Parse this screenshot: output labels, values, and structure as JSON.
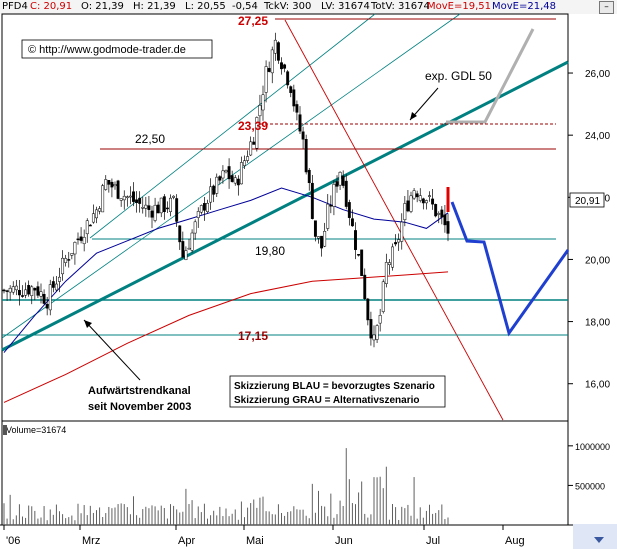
{
  "header": {
    "symbol": "PFD4",
    "close": "C: 20,91",
    "open": "O: 21,39",
    "high": "H: 21,39",
    "low": "L: 20,55",
    "change": "-0,54",
    "tick_vol": "TckV: 300",
    "last_vol": "LV: 31674",
    "total_vol": "TotV: 31674",
    "move_red": "MovE=19,51",
    "move_blue": "MovE=21,48",
    "button": "–"
  },
  "colors": {
    "up": "#3a3a3a",
    "down": "#000000",
    "ema_red": "#cc0000",
    "ema_blue": "#000099",
    "trend": "#008080",
    "scenario_blue": "#1f3fd0",
    "scenario_grey": "#b0b0b0",
    "annot_red": "#cc0000"
  },
  "chart_data": {
    "type": "candlestick",
    "x_axis": {
      "ticks": [
        "'06",
        "Mrz",
        "Apr",
        "Mai",
        "Jun",
        "Jul",
        "Aug"
      ]
    },
    "y_axis": {
      "ylim": [
        14.8,
        27.9
      ],
      "ticks": [
        "16,00",
        "18,00",
        "20,00",
        "22,00",
        "24,00",
        "26,00"
      ],
      "current_value_label": "20,91"
    },
    "series_seed": {
      "comment": "",
      "path": [
        [
          0,
          19.0
        ],
        [
          10,
          19.1
        ],
        [
          14,
          18.7
        ],
        [
          20,
          20.0
        ],
        [
          26,
          21.0
        ],
        [
          30,
          21.6
        ],
        [
          33,
          22.5
        ],
        [
          40,
          22.0
        ],
        [
          47,
          21.6
        ],
        [
          55,
          21.8
        ],
        [
          58,
          20.1
        ],
        [
          65,
          21.8
        ],
        [
          72,
          22.8
        ],
        [
          75,
          22.4
        ],
        [
          81,
          24.0
        ],
        [
          85,
          26.0
        ],
        [
          88,
          27.0
        ],
        [
          90,
          26.4
        ],
        [
          93,
          25.6
        ],
        [
          95,
          24.5
        ],
        [
          97,
          23.8
        ],
        [
          99,
          22.3
        ],
        [
          101,
          20.8
        ],
        [
          103,
          20.4
        ],
        [
          105,
          21.5
        ],
        [
          107,
          22.2
        ],
        [
          109,
          22.9
        ],
        [
          111,
          22.0
        ],
        [
          113,
          21.0
        ],
        [
          116,
          19.6
        ],
        [
          118,
          18.2
        ],
        [
          120,
          17.3
        ],
        [
          122,
          18.2
        ],
        [
          124,
          19.8
        ],
        [
          127,
          20.3
        ],
        [
          130,
          21.6
        ],
        [
          133,
          22.3
        ],
        [
          137,
          22.0
        ],
        [
          141,
          21.4
        ],
        [
          144,
          20.9
        ]
      ]
    },
    "ema_red": {
      "name": "MovE=19,51",
      "points": [
        [
          0,
          15.4
        ],
        [
          20,
          16.3
        ],
        [
          40,
          17.3
        ],
        [
          60,
          18.2
        ],
        [
          80,
          18.9
        ],
        [
          100,
          19.3
        ],
        [
          115,
          19.4
        ],
        [
          130,
          19.5
        ],
        [
          144,
          19.6
        ]
      ]
    },
    "ema_blue": {
      "name": "MovE=21,48",
      "points": [
        [
          0,
          17.0
        ],
        [
          10,
          18.2
        ],
        [
          20,
          19.3
        ],
        [
          30,
          20.2
        ],
        [
          40,
          20.6
        ],
        [
          50,
          21.0
        ],
        [
          60,
          21.3
        ],
        [
          70,
          21.6
        ],
        [
          80,
          21.9
        ],
        [
          90,
          22.3
        ],
        [
          100,
          22.0
        ],
        [
          110,
          21.6
        ],
        [
          120,
          21.3
        ],
        [
          130,
          21.2
        ],
        [
          137,
          21.0
        ],
        [
          144,
          21.5
        ]
      ]
    },
    "volume": {
      "axis_ticks": [
        "1000000",
        "500000"
      ],
      "label": "Volume=31674",
      "max": 1200000
    }
  },
  "annotations": {
    "high": "27,25",
    "level_23": "23,39",
    "level_22": "22,50",
    "level_19": "19,80",
    "level_17": "17,15",
    "ema_label": "exp. GDL 50",
    "copyright": "© http://www.godmode-trader.de",
    "channel_1": "Aufwärtstrendkanal",
    "channel_2": "seit November  2003",
    "legend_1": "Skizzierung BLAU = bevorzugtes Szenario",
    "legend_2": "Skizzierung GRAU = Alternativszenario"
  }
}
